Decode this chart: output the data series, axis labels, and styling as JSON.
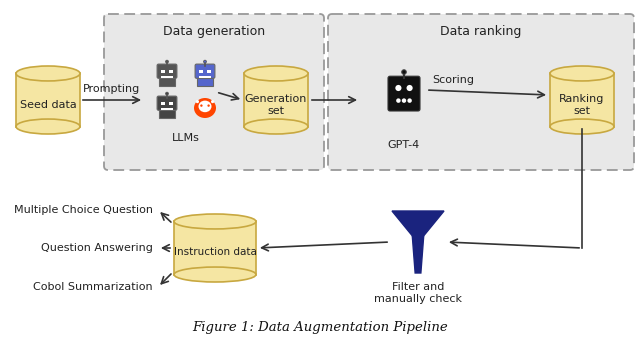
{
  "title": "Figure 1: Data Augmentation Pipeline",
  "background_color": "#ffffff",
  "cylinder_color": "#f5e6a3",
  "cylinder_edge_color": "#c8a840",
  "box_bg_color": "#e8e8e8",
  "box_edge_color": "#999999",
  "arrow_color": "#333333",
  "text_color": "#222222",
  "funnel_color": "#1a237e",
  "labels": {
    "seed_data": "Seed data",
    "prompting": "Prompting",
    "llms": "LLMs",
    "data_generation": "Data generation",
    "generation_set": "Generation\nset",
    "data_ranking": "Data ranking",
    "gpt4": "GPT-4",
    "scoring": "Scoring",
    "ranking_set": "Ranking\nset",
    "filter": "Filter and\nmanually check",
    "instruction_data": "Instruction data",
    "mcq": "Multiple Choice Question",
    "qa": "Question Answering",
    "cobol": "Cobol Summarization"
  }
}
